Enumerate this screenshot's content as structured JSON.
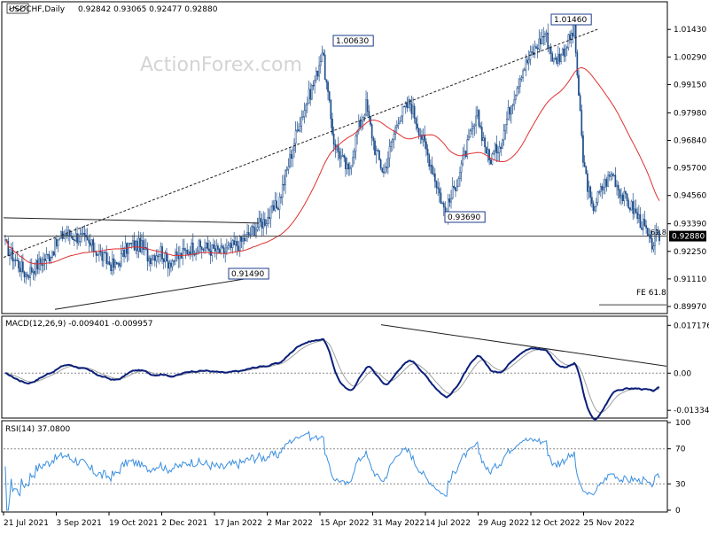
{
  "header": {
    "symbol": "USDCHF,Daily",
    "ohlc": "0.92842 0.93065 0.92477 0.92880"
  },
  "watermark": "ActionForex.com",
  "colors": {
    "background": "#ffffff",
    "candle_up": "#ffffff",
    "candle_down": "#1e4e8c",
    "candle_outline": "#1e4e8c",
    "moving_average": "#e03030",
    "macd_line": "#0a1f7a",
    "signal_line": "#a0a0a0",
    "rsi_line": "#3a8fe0",
    "trendline": "#202020",
    "price_line": "#404040",
    "label_border": "#1e3c8c",
    "watermark": "#d4d4d4",
    "last_price_bg": "#000000",
    "last_price_text": "#ffffff"
  },
  "chart_data": [
    {
      "type": "candlestick",
      "panel": "price",
      "title": "USDCHF,Daily",
      "x": [
        "21 Jul 2021",
        "3 Sep 2021",
        "19 Oct 2021",
        "2 Dec 2021",
        "17 Jan 2022",
        "2 Mar 2022",
        "15 Apr 2022",
        "31 May 2022",
        "14 Jul 2022",
        "29 Aug 2022",
        "12 Oct 2022",
        "25 Nov 2022"
      ],
      "ylim": [
        0.8975,
        1.025
      ],
      "yticks": [
        "1.01430",
        "1.00290",
        "0.99150",
        "0.97980",
        "0.96840",
        "0.95700",
        "0.94560",
        "0.93390",
        "0.92250",
        "0.91110",
        "0.89970"
      ],
      "last_price": "0.92880",
      "moving_average": "55 day",
      "key_levels": [
        {
          "label": "1.00630",
          "value": 1.0063,
          "date": "2022-04-26"
        },
        {
          "label": "1.01460",
          "value": 1.0146,
          "date": "2022-11-03"
        },
        {
          "label": "0.93690",
          "value": 0.9369,
          "date": "2022-08-11"
        },
        {
          "label": "0.91490",
          "value": 0.9149,
          "date": "2022-01-14"
        }
      ],
      "annotations": [
        "FE 61.8",
        "61.8"
      ],
      "grid": false
    },
    {
      "type": "line",
      "panel": "macd",
      "title": "MACD(12,26,9) -0.009401 -0.009957",
      "series": [
        {
          "name": "MACD",
          "last": -0.009401
        },
        {
          "name": "Signal",
          "last": -0.009957
        }
      ],
      "ylim": [
        -0.0155,
        0.0195
      ],
      "yticks": [
        "0.017176",
        "0.00",
        "-0.01334"
      ]
    },
    {
      "type": "line",
      "panel": "rsi",
      "title": "RSI(14) 37.0800",
      "series": [
        {
          "name": "RSI",
          "last": 37.08
        }
      ],
      "ylim": [
        0,
        100
      ],
      "yticks": [
        "100",
        "70",
        "30",
        "0"
      ]
    }
  ]
}
